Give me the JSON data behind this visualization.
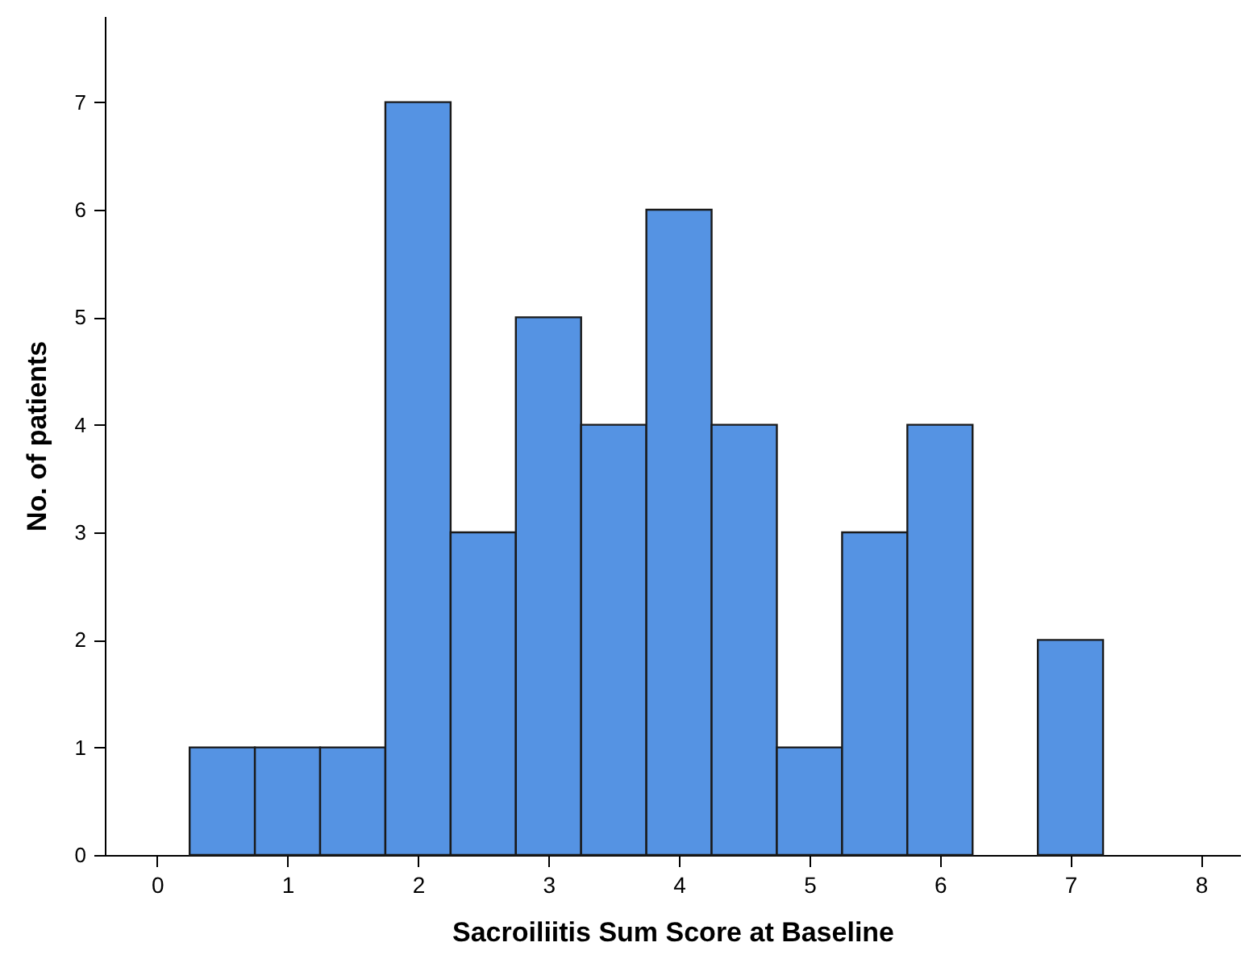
{
  "chart_data": {
    "type": "histogram",
    "xlabel": "Sacroiliitis Sum Score at Baseline",
    "ylabel": "No. of patients",
    "bins": [
      0.25,
      0.75,
      1.25,
      1.75,
      2.25,
      2.75,
      3.25,
      3.75,
      4.25,
      4.75,
      5.25,
      5.75,
      6.25,
      6.75,
      7.25
    ],
    "values": [
      1,
      1,
      1,
      7,
      3,
      5,
      4,
      6,
      4,
      1,
      3,
      4,
      0,
      2
    ],
    "color": "#5593e3",
    "xlim": [
      -0.4,
      8.3
    ],
    "xticks": [
      0,
      1,
      2,
      3,
      4,
      5,
      6,
      7,
      8
    ],
    "ylim": [
      0,
      7.8
    ],
    "yticks": [
      0,
      1,
      2,
      3,
      4,
      5,
      6,
      7
    ]
  }
}
